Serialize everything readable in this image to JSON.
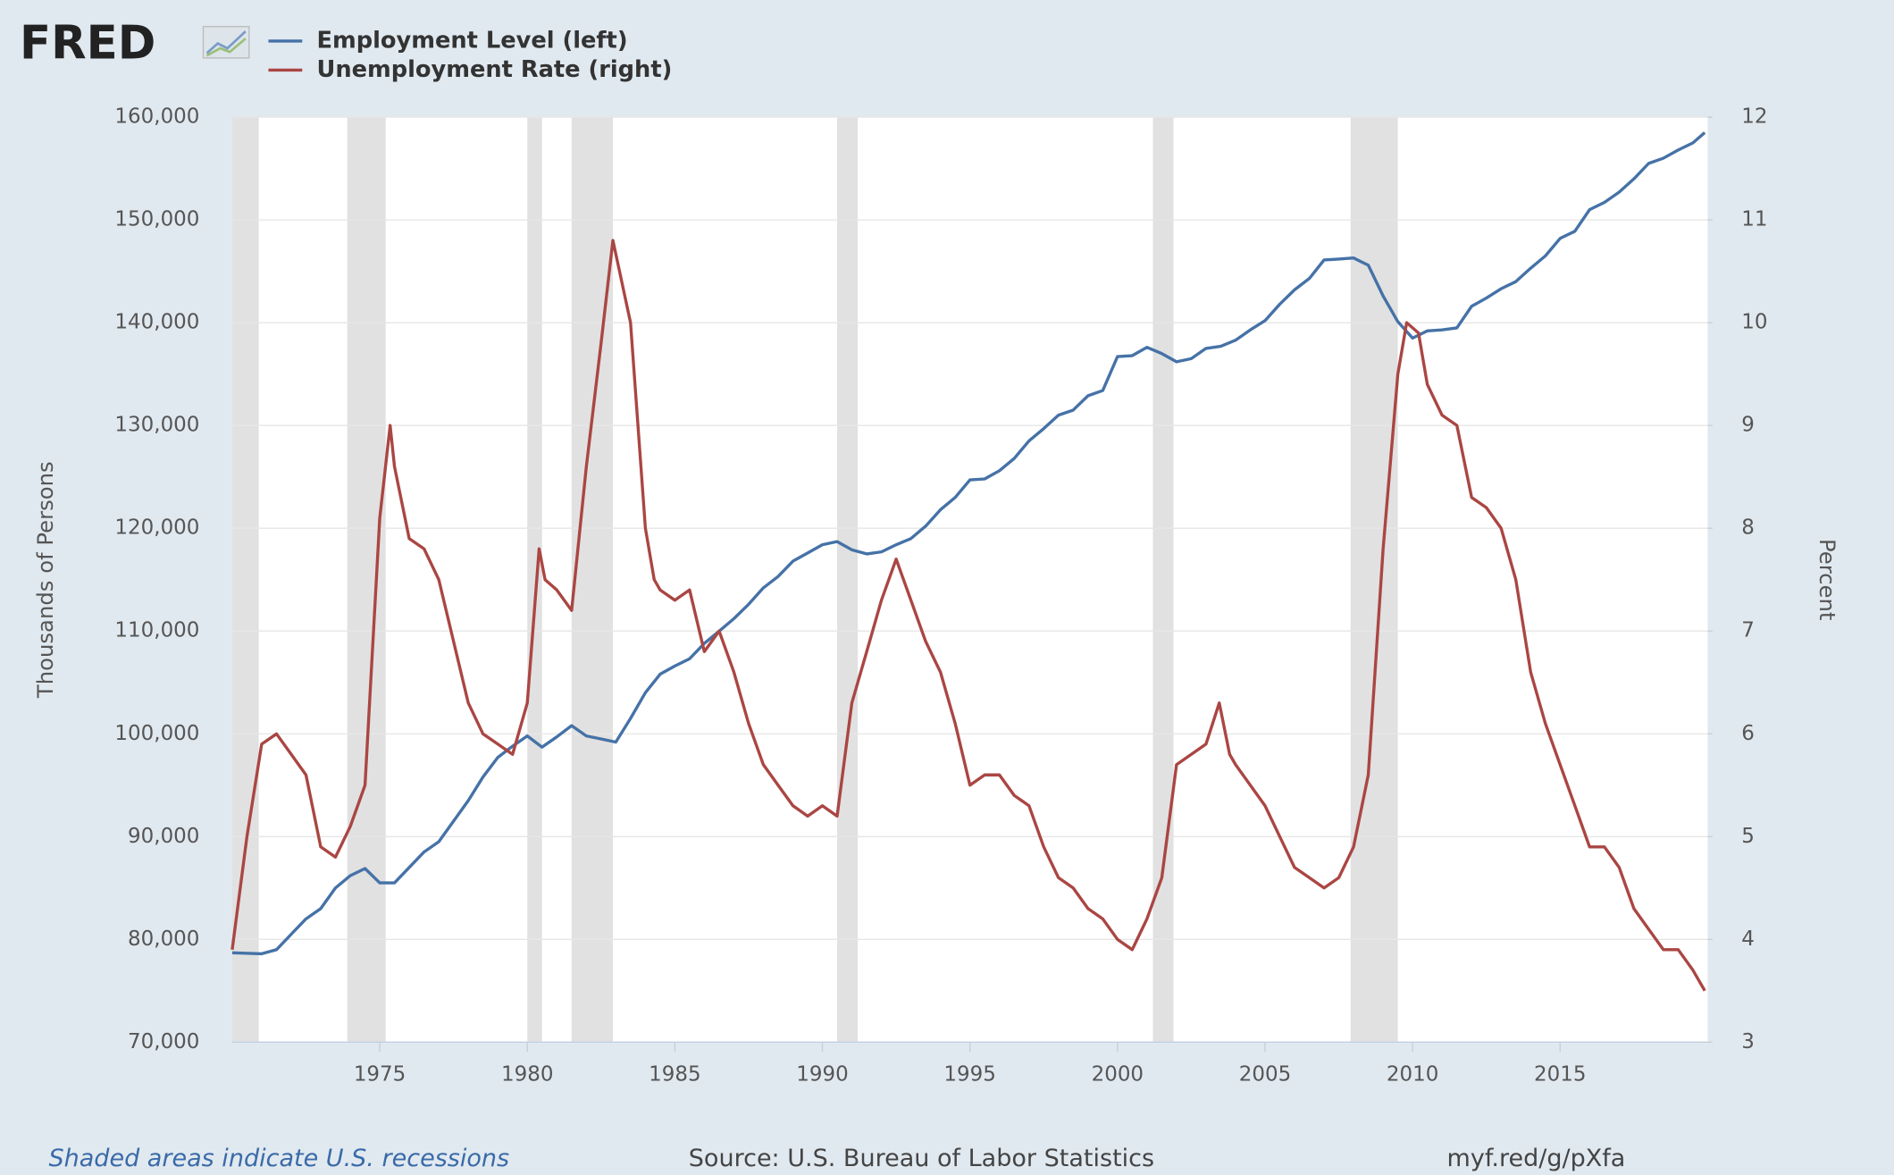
{
  "chart_data": {
    "type": "line",
    "logo": "FRED",
    "ylabel": "Thousands of Persons",
    "y2label": "Percent",
    "note": "Shaded areas indicate U.S. recessions",
    "source": "Source: U.S. Bureau of Labor Statistics",
    "link": "myf.red/g/pXfa",
    "xlim": [
      1970,
      2020
    ],
    "xticks": [
      1975,
      1980,
      1985,
      1990,
      1995,
      2000,
      2005,
      2010,
      2015
    ],
    "ylim": [
      70000,
      160000
    ],
    "yticks": [
      {
        "value": 70000,
        "label": "70,000"
      },
      {
        "value": 80000,
        "label": "80,000"
      },
      {
        "value": 90000,
        "label": "90,000"
      },
      {
        "value": 100000,
        "label": "100,000"
      },
      {
        "value": 110000,
        "label": "110,000"
      },
      {
        "value": 120000,
        "label": "120,000"
      },
      {
        "value": 130000,
        "label": "130,000"
      },
      {
        "value": 140000,
        "label": "140,000"
      },
      {
        "value": 150000,
        "label": "150,000"
      },
      {
        "value": 160000,
        "label": "160,000"
      }
    ],
    "y2lim": [
      3,
      12
    ],
    "y2ticks": [
      3,
      4,
      5,
      6,
      7,
      8,
      9,
      10,
      11,
      12
    ],
    "grid": true,
    "recessions": [
      [
        1970.0,
        1970.9
      ],
      [
        1973.9,
        1975.2
      ],
      [
        1980.0,
        1980.5
      ],
      [
        1981.5,
        1982.9
      ],
      [
        1990.5,
        1991.2
      ],
      [
        2001.2,
        2001.9
      ],
      [
        2007.9,
        2009.5
      ]
    ],
    "series": [
      {
        "name": "Employment Level (left)",
        "color": "#4572a7",
        "axis": "y",
        "x": [
          1970.0,
          1971.0,
          1971.5,
          1972.0,
          1972.5,
          1973.0,
          1973.5,
          1974.0,
          1974.5,
          1975.0,
          1975.5,
          1976.0,
          1976.5,
          1977.0,
          1977.5,
          1978.0,
          1978.5,
          1979.0,
          1979.5,
          1980.0,
          1980.5,
          1981.0,
          1981.5,
          1982.0,
          1982.5,
          1983.0,
          1983.5,
          1984.0,
          1984.5,
          1985.0,
          1985.5,
          1986.0,
          1986.5,
          1987.0,
          1987.5,
          1988.0,
          1988.5,
          1989.0,
          1989.5,
          1990.0,
          1990.5,
          1991.0,
          1991.5,
          1992.0,
          1992.5,
          1993.0,
          1993.5,
          1994.0,
          1994.5,
          1995.0,
          1995.5,
          1996.0,
          1996.5,
          1997.0,
          1997.5,
          1998.0,
          1998.5,
          1999.0,
          1999.5,
          2000.0,
          2000.5,
          2001.0,
          2001.5,
          2002.0,
          2002.5,
          2003.0,
          2003.5,
          2004.0,
          2004.5,
          2005.0,
          2005.5,
          2006.0,
          2006.5,
          2007.0,
          2007.5,
          2008.0,
          2008.5,
          2009.0,
          2009.5,
          2010.0,
          2010.5,
          2011.0,
          2011.5,
          2012.0,
          2012.5,
          2013.0,
          2013.5,
          2014.0,
          2014.5,
          2015.0,
          2015.5,
          2016.0,
          2016.5,
          2017.0,
          2017.5,
          2018.0,
          2018.5,
          2019.0,
          2019.5,
          2019.9
        ],
        "values": [
          78700,
          78600,
          79000,
          80500,
          82000,
          83000,
          85000,
          86200,
          86900,
          85500,
          85500,
          87000,
          88500,
          89500,
          91500,
          93500,
          95800,
          97700,
          98800,
          99800,
          98700,
          99700,
          100800,
          99800,
          99500,
          99200,
          101500,
          104000,
          105800,
          106600,
          107300,
          108800,
          110000,
          111200,
          112600,
          114200,
          115300,
          116800,
          117600,
          118400,
          118700,
          117900,
          117500,
          117700,
          118400,
          119000,
          120200,
          121800,
          123000,
          124700,
          124800,
          125600,
          126800,
          128500,
          129700,
          131000,
          131500,
          132900,
          133400,
          136700,
          136800,
          137600,
          137000,
          136200,
          136500,
          137500,
          137700,
          138300,
          139300,
          140200,
          141800,
          143200,
          144300,
          146100,
          146200,
          146300,
          145600,
          142600,
          140100,
          138500,
          139200,
          139300,
          139500,
          141600,
          142400,
          143300,
          144000,
          145300,
          146500,
          148200,
          148900,
          151000,
          151700,
          152700,
          154000,
          155500,
          156000,
          156800,
          157500,
          158500
        ]
      },
      {
        "name": "Unemployment Rate (right)",
        "color": "#aa4643",
        "axis": "y2",
        "x": [
          1970.0,
          1970.5,
          1971.0,
          1971.5,
          1972.0,
          1972.5,
          1973.0,
          1973.5,
          1974.0,
          1974.5,
          1975.0,
          1975.35,
          1975.5,
          1976.0,
          1976.5,
          1977.0,
          1977.5,
          1978.0,
          1978.5,
          1979.0,
          1979.5,
          1980.0,
          1980.4,
          1980.6,
          1981.0,
          1981.5,
          1982.0,
          1982.5,
          1982.9,
          1983.5,
          1984.0,
          1984.3,
          1984.5,
          1985.0,
          1985.5,
          1986.0,
          1986.5,
          1987.0,
          1987.5,
          1988.0,
          1988.5,
          1989.0,
          1989.5,
          1990.0,
          1990.5,
          1991.0,
          1991.5,
          1992.0,
          1992.5,
          1993.0,
          1993.5,
          1994.0,
          1994.5,
          1995.0,
          1995.5,
          1996.0,
          1996.5,
          1997.0,
          1997.5,
          1998.0,
          1998.5,
          1999.0,
          1999.5,
          2000.0,
          2000.5,
          2001.0,
          2001.5,
          2002.0,
          2002.5,
          2003.0,
          2003.45,
          2003.8,
          2004.0,
          2004.5,
          2005.0,
          2005.5,
          2006.0,
          2006.5,
          2007.0,
          2007.5,
          2008.0,
          2008.5,
          2009.0,
          2009.5,
          2009.8,
          2010.2,
          2010.5,
          2011.0,
          2011.5,
          2012.0,
          2012.5,
          2013.0,
          2013.5,
          2014.0,
          2014.5,
          2015.0,
          2015.5,
          2016.0,
          2016.5,
          2017.0,
          2017.5,
          2018.0,
          2018.5,
          2019.0,
          2019.5,
          2019.9
        ],
        "values": [
          3.9,
          5.0,
          5.9,
          6.0,
          5.8,
          5.6,
          4.9,
          4.8,
          5.1,
          5.5,
          8.1,
          9.0,
          8.6,
          7.9,
          7.8,
          7.5,
          6.9,
          6.3,
          6.0,
          5.9,
          5.8,
          6.3,
          7.8,
          7.5,
          7.4,
          7.2,
          8.6,
          9.8,
          10.8,
          10.0,
          8.0,
          7.5,
          7.4,
          7.3,
          7.4,
          6.8,
          7.0,
          6.6,
          6.1,
          5.7,
          5.5,
          5.3,
          5.2,
          5.3,
          5.2,
          6.3,
          6.8,
          7.3,
          7.7,
          7.3,
          6.9,
          6.6,
          6.1,
          5.5,
          5.6,
          5.6,
          5.4,
          5.3,
          4.9,
          4.6,
          4.5,
          4.3,
          4.2,
          4.0,
          3.9,
          4.2,
          4.6,
          5.7,
          5.8,
          5.9,
          6.3,
          5.8,
          5.7,
          5.5,
          5.3,
          5.0,
          4.7,
          4.6,
          4.5,
          4.6,
          4.9,
          5.6,
          7.8,
          9.5,
          10.0,
          9.9,
          9.4,
          9.1,
          9.0,
          8.3,
          8.2,
          8.0,
          7.5,
          6.6,
          6.1,
          5.7,
          5.3,
          4.9,
          4.9,
          4.7,
          4.3,
          4.1,
          3.9,
          3.9,
          3.7,
          3.5
        ]
      }
    ]
  }
}
